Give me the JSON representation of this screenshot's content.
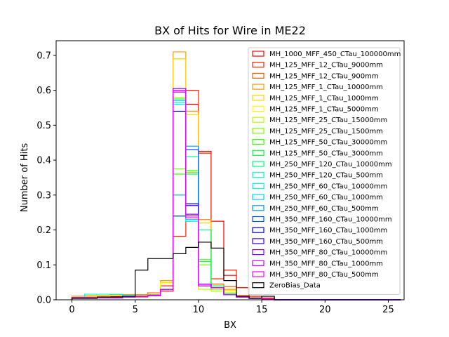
{
  "chart_data": {
    "type": "step-histogram",
    "title": "BX of Hits for Wire in ME22",
    "xlabel": "BX",
    "ylabel": "Number of Hits",
    "xlim": [
      -1.25,
      26.25
    ],
    "ylim": [
      0,
      0.742
    ],
    "xticks": [
      0,
      5,
      10,
      15,
      20,
      25
    ],
    "yticks": [
      0.0,
      0.1,
      0.2,
      0.3,
      0.4,
      0.5,
      0.6,
      0.7
    ],
    "ytick_labels": [
      "0.0",
      "0.1",
      "0.2",
      "0.3",
      "0.4",
      "0.5",
      "0.6",
      "0.7"
    ],
    "grid": false,
    "legend_position": "upper-right",
    "bin_edges": [
      0,
      1,
      2,
      3,
      4,
      5,
      6,
      7,
      8,
      9,
      10,
      11,
      12,
      13,
      14,
      15,
      16,
      17,
      18,
      19,
      20,
      21,
      22,
      23,
      24,
      25
    ],
    "series": [
      {
        "name": "MH_1000_MFF_450_CTau_100000mm",
        "color": "#ff0000",
        "values": [
          0.01,
          0.01,
          0.01,
          0.01,
          0.01,
          0.01,
          0.015,
          0.025,
          0.24,
          0.56,
          0.425,
          0.225,
          0.07,
          0.035,
          0.01,
          0.005,
          0,
          0,
          0,
          0,
          0,
          0,
          0,
          0,
          0
        ]
      },
      {
        "name": "MH_125_MFF_12_CTau_9000mm",
        "color": "#ff2000",
        "values": [
          0.008,
          0.008,
          0.008,
          0.008,
          0.008,
          0.008,
          0.015,
          0.04,
          0.182,
          0.6,
          0.42,
          0.06,
          0.085,
          0.035,
          0.01,
          0.005,
          0,
          0,
          0,
          0,
          0,
          0,
          0,
          0,
          0
        ]
      },
      {
        "name": "MH_125_MFF_12_CTau_900mm",
        "color": "#ff5a00",
        "values": [
          0.008,
          0.008,
          0.008,
          0.008,
          0.01,
          0.012,
          0.02,
          0.05,
          0.24,
          0.54,
          0.23,
          0.045,
          0.038,
          0.012,
          0.005,
          0.003,
          0,
          0,
          0,
          0,
          0,
          0,
          0,
          0,
          0
        ]
      },
      {
        "name": "MH_125_MFF_1_CTau_10000mm",
        "color": "#ff9a00",
        "values": [
          0.01,
          0.012,
          0.012,
          0.015,
          0.015,
          0.015,
          0.015,
          0.055,
          0.71,
          0.54,
          0.23,
          0.035,
          0.03,
          0.01,
          0.005,
          0.002,
          0,
          0,
          0,
          0,
          0,
          0,
          0,
          0,
          0
        ]
      },
      {
        "name": "MH_125_MFF_1_CTau_1000mm",
        "color": "#ffd200",
        "values": [
          0.008,
          0.01,
          0.01,
          0.012,
          0.012,
          0.012,
          0.012,
          0.05,
          0.69,
          0.53,
          0.22,
          0.03,
          0.028,
          0.01,
          0.004,
          0.002,
          0,
          0,
          0,
          0,
          0,
          0,
          0,
          0,
          0
        ]
      },
      {
        "name": "MH_125_MFF_1_CTau_5000mm",
        "color": "#ffff00",
        "values": [
          0.008,
          0.01,
          0.01,
          0.012,
          0.012,
          0.012,
          0.012,
          0.048,
          0.6,
          0.245,
          0.03,
          0.025,
          0.025,
          0.01,
          0.004,
          0.002,
          0,
          0,
          0,
          0,
          0,
          0,
          0,
          0,
          0
        ]
      },
      {
        "name": "MH_125_MFF_25_CTau_15000mm",
        "color": "#b4ff00",
        "values": [
          0.006,
          0.006,
          0.006,
          0.006,
          0.008,
          0.01,
          0.012,
          0.03,
          0.58,
          0.24,
          0.03,
          0.025,
          0.02,
          0.008,
          0.004,
          0.002,
          0,
          0,
          0,
          0,
          0,
          0,
          0,
          0,
          0
        ]
      },
      {
        "name": "MH_125_MFF_25_CTau_1500mm",
        "color": "#7dff00",
        "values": [
          0.006,
          0.006,
          0.006,
          0.006,
          0.008,
          0.01,
          0.012,
          0.03,
          0.375,
          0.365,
          0.1,
          0.03,
          0.018,
          0.008,
          0.004,
          0.002,
          0,
          0,
          0,
          0,
          0,
          0,
          0,
          0,
          0
        ]
      },
      {
        "name": "MH_125_MFF_50_CTau_30000mm",
        "color": "#35ff00",
        "values": [
          0.006,
          0.006,
          0.006,
          0.006,
          0.008,
          0.01,
          0.012,
          0.03,
          0.36,
          0.37,
          0.115,
          0.035,
          0.015,
          0.008,
          0.004,
          0.002,
          0,
          0,
          0,
          0,
          0,
          0,
          0,
          0,
          0
        ]
      },
      {
        "name": "MH_125_MFF_50_CTau_3000mm",
        "color": "#00ff3c",
        "values": [
          0.006,
          0.006,
          0.006,
          0.006,
          0.008,
          0.01,
          0.012,
          0.03,
          0.575,
          0.36,
          0.11,
          0.04,
          0.015,
          0.008,
          0.004,
          0.002,
          0,
          0,
          0,
          0,
          0,
          0,
          0,
          0,
          0
        ]
      },
      {
        "name": "MH_250_MFF_120_CTau_10000mm",
        "color": "#00ff7f",
        "values": [
          0.006,
          0.006,
          0.006,
          0.006,
          0.008,
          0.01,
          0.012,
          0.03,
          0.24,
          0.41,
          0.2,
          0.04,
          0.018,
          0.008,
          0.004,
          0.002,
          0,
          0,
          0,
          0,
          0,
          0,
          0,
          0,
          0
        ]
      },
      {
        "name": "MH_250_MFF_120_CTau_500mm",
        "color": "#00ffbe",
        "values": [
          0.006,
          0.006,
          0.006,
          0.006,
          0.008,
          0.01,
          0.012,
          0.03,
          0.565,
          0.225,
          0.045,
          0.035,
          0.015,
          0.008,
          0.004,
          0.002,
          0,
          0,
          0,
          0,
          0,
          0,
          0,
          0,
          0
        ]
      },
      {
        "name": "MH_250_MFF_60_CTau_10000mm",
        "color": "#00ffe6",
        "values": [
          0.006,
          0.016,
          0.016,
          0.016,
          0.012,
          0.01,
          0.012,
          0.03,
          0.56,
          0.225,
          0.04,
          0.035,
          0.015,
          0.008,
          0.004,
          0.002,
          0,
          0,
          0,
          0,
          0,
          0,
          0,
          0,
          0
        ]
      },
      {
        "name": "MH_250_MFF_60_CTau_1000mm",
        "color": "#00d2ff",
        "values": [
          0.006,
          0.006,
          0.006,
          0.006,
          0.008,
          0.01,
          0.012,
          0.03,
          0.57,
          0.23,
          0.045,
          0.035,
          0.015,
          0.008,
          0.004,
          0.002,
          0,
          0,
          0,
          0,
          0,
          0,
          0,
          0,
          0
        ]
      },
      {
        "name": "MH_250_MFF_60_CTau_500mm",
        "color": "#0096ff",
        "values": [
          0.006,
          0.006,
          0.006,
          0.006,
          0.008,
          0.01,
          0.012,
          0.03,
          0.3,
          0.44,
          0.045,
          0.035,
          0.015,
          0.008,
          0.004,
          0.002,
          0,
          0,
          0,
          0,
          0,
          0,
          0,
          0,
          0
        ]
      },
      {
        "name": "MH_350_MFF_160_CTau_10000mm",
        "color": "#0050ff",
        "values": [
          0.006,
          0.006,
          0.006,
          0.006,
          0.008,
          0.01,
          0.012,
          0.03,
          0.24,
          0.43,
          0.045,
          0.035,
          0.015,
          0.008,
          0.004,
          0.002,
          0,
          0,
          0,
          0,
          0,
          0,
          0,
          0,
          0
        ]
      },
      {
        "name": "MH_350_MFF_160_CTau_1000mm",
        "color": "#0000e6",
        "values": [
          0.006,
          0.006,
          0.006,
          0.006,
          0.008,
          0.01,
          0.012,
          0.03,
          0.54,
          0.275,
          0.04,
          0.035,
          0.015,
          0.008,
          0.004,
          0.002,
          0,
          0,
          0,
          0,
          0,
          0,
          0,
          0,
          0
        ]
      },
      {
        "name": "MH_350_MFF_160_CTau_500mm",
        "color": "#3c00ff",
        "values": [
          0.006,
          0.006,
          0.006,
          0.006,
          0.008,
          0.01,
          0.012,
          0.03,
          0.6,
          0.27,
          0.045,
          0.035,
          0.015,
          0.008,
          0.004,
          0.002,
          0,
          0,
          0,
          0,
          0,
          0,
          0,
          0,
          0
        ]
      },
      {
        "name": "MH_350_MFF_80_CTau_10000mm",
        "color": "#8200ff",
        "values": [
          0.006,
          0.006,
          0.006,
          0.006,
          0.008,
          0.01,
          0.012,
          0.03,
          0.605,
          0.245,
          0.04,
          0.035,
          0.015,
          0.008,
          0.004,
          0.002,
          0,
          0,
          0,
          0,
          0,
          0,
          0,
          0,
          0
        ]
      },
      {
        "name": "MH_350_MFF_80_CTau_1000mm",
        "color": "#be00ff",
        "values": [
          0.006,
          0.006,
          0.006,
          0.006,
          0.008,
          0.01,
          0.012,
          0.03,
          0.595,
          0.24,
          0.045,
          0.035,
          0.015,
          0.008,
          0.004,
          0.002,
          0,
          0,
          0,
          0,
          0,
          0,
          0,
          0,
          0
        ]
      },
      {
        "name": "MH_350_MFF_80_CTau_500mm",
        "color": "#ff00ff",
        "values": [
          0.006,
          0.006,
          0.006,
          0.006,
          0.008,
          0.01,
          0.012,
          0.03,
          0.6,
          0.235,
          0.04,
          0.035,
          0.015,
          0.008,
          0.004,
          0.002,
          0,
          0,
          0,
          0,
          0,
          0,
          0,
          0,
          0
        ]
      },
      {
        "name": "ZeroBias_Data",
        "color": "#000000",
        "values": [
          0.004,
          0.004,
          0.008,
          0.008,
          0.01,
          0.085,
          0.118,
          0.118,
          0.132,
          0.15,
          0.165,
          0.148,
          0.055,
          0.01,
          0.005,
          0.01,
          0,
          0,
          0,
          0,
          0,
          0,
          0,
          0,
          0
        ]
      }
    ]
  }
}
